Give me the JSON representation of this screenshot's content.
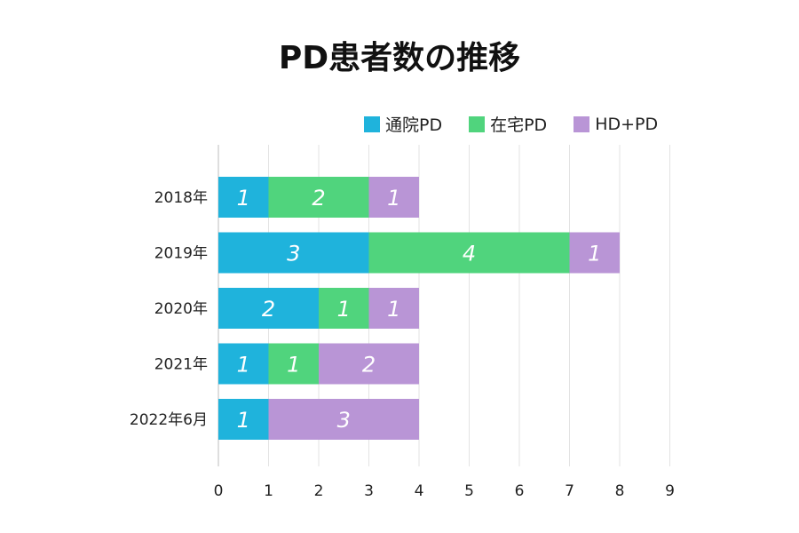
{
  "chart_data": {
    "type": "bar",
    "orientation": "horizontal",
    "stacked": true,
    "title": "PD患者数の推移",
    "categories": [
      "2018年",
      "2019年",
      "2020年",
      "2021年",
      "2022年6月"
    ],
    "series": [
      {
        "name": "通院PD",
        "color": "#1fb3dc",
        "values": [
          1,
          3,
          2,
          1,
          1
        ]
      },
      {
        "name": "在宅PD",
        "color": "#50d47d",
        "values": [
          2,
          4,
          1,
          1,
          0
        ]
      },
      {
        "name": "HD+PD",
        "color": "#b995d6",
        "values": [
          1,
          1,
          1,
          2,
          3
        ]
      }
    ],
    "xlim": [
      0,
      9
    ],
    "xticks": [
      "0",
      "1",
      "2",
      "3",
      "4",
      "5",
      "6",
      "7",
      "8",
      "9"
    ],
    "xlabel": "",
    "ylabel": "",
    "grid": "vertical",
    "legend_position": "top-right"
  }
}
